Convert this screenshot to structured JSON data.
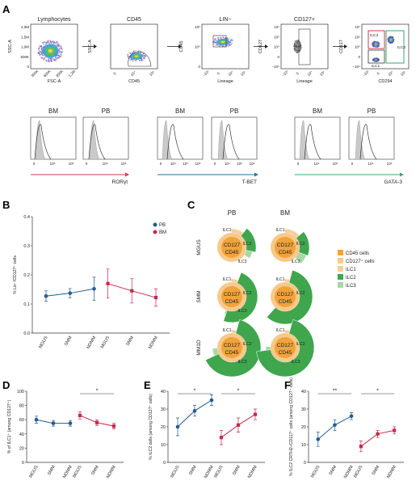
{
  "panels": {
    "A": "A",
    "B": "B",
    "C": "C",
    "D": "D",
    "E": "E",
    "F": "F"
  },
  "flow": {
    "plots": [
      {
        "title": "Lymphocytes",
        "ylabel": "SSC-A",
        "xlabel": "FSC-A",
        "yticks": [
          "2,0M",
          "1,5M",
          "1,0M",
          "500K",
          "0"
        ],
        "xticks": [
          "300K",
          "600K",
          "900K",
          "1,2M"
        ]
      },
      {
        "title": "CD45",
        "ylabel": "SSC-A",
        "xlabel": "CD45",
        "yticks": [],
        "xticks": [
          "0",
          "10⁴",
          "10⁶"
        ]
      },
      {
        "title": "LIN−",
        "ylabel": "CD45",
        "xlabel": "Lineage",
        "yticks": [
          "10⁶",
          "10⁴",
          "0"
        ],
        "xticks": [
          "−10⁴",
          "0",
          "10⁴",
          "10⁶"
        ]
      },
      {
        "title": "CD127+",
        "ylabel": "CD127",
        "xlabel": "Lineage",
        "yticks": [
          "10⁷",
          "10⁵",
          "10⁴",
          "0",
          "−10⁴"
        ],
        "xticks": [
          "−10⁴",
          "0",
          "10⁴",
          "10⁶"
        ]
      },
      {
        "title": "",
        "ylabel": "CD117",
        "xlabel": "CD294",
        "yticks": [
          "10⁷",
          "10⁵",
          "10⁴",
          "0",
          "−10⁴"
        ],
        "xticks": [
          "−10⁴",
          "0",
          "10⁴",
          "10⁶"
        ],
        "gates": [
          "ILC3",
          "ILC2",
          "ILC1"
        ]
      }
    ]
  },
  "histograms": {
    "items": [
      {
        "label": "BM",
        "xticks": [
          "0",
          "10⁵",
          "10⁶"
        ]
      },
      {
        "label": "PB",
        "xticks": [
          "0",
          "10⁵",
          "10⁶"
        ]
      },
      {
        "label": "BM",
        "xticks": [
          "0",
          "10⁴",
          "10⁵",
          "10⁶"
        ]
      },
      {
        "label": "PB",
        "xticks": [
          "0",
          "10⁴",
          "10⁵",
          "10⁶"
        ]
      },
      {
        "label": "BM",
        "xticks": [
          "0",
          "10⁴",
          "10⁵"
        ]
      },
      {
        "label": "PB",
        "xticks": [
          "0",
          "10⁴",
          "10⁵"
        ]
      }
    ],
    "markers": [
      {
        "label": "RORγt",
        "color": "#d0384d"
      },
      {
        "label": "T-BET",
        "color": "#2d6e9e"
      },
      {
        "label": "GATA-3",
        "color": "#3aa66a"
      }
    ]
  },
  "donuts": {
    "col_labels": [
      "PB",
      "BM"
    ],
    "row_labels": [
      "MGUS",
      "SMM",
      "MM1D"
    ],
    "inner_labels": {
      "cd127": "CD127",
      "cd45": "CD45"
    },
    "seg_labels": [
      "ILC1",
      "ILC2",
      "ILC3"
    ],
    "legend": [
      {
        "label": "CD45 cells",
        "color": "#f1a33a"
      },
      {
        "label": "CD127⁺ cells",
        "color": "#f8c98a"
      },
      {
        "label": "ILC1",
        "color": "#f5cf9a"
      },
      {
        "label": "ILC2",
        "color": "#3fa64d"
      },
      {
        "label": "ILC3",
        "color": "#a7d8a5"
      }
    ]
  },
  "colors": {
    "pb": "#245b8f",
    "bm": "#c8294b"
  },
  "chart_data": [
    {
      "panel": "B",
      "type": "line",
      "ylabel": "% Lin⁻/CD127⁺ cells",
      "categories": [
        "MGUS",
        "SMM",
        "NDMM"
      ],
      "ylim": [
        0,
        0.4
      ],
      "yticks": [
        "0.0",
        "0.1",
        "0.2",
        "0.3",
        "0.4"
      ],
      "legend": [
        {
          "label": "PB",
          "color": "#245b8f"
        },
        {
          "label": "BM",
          "color": "#c8294b"
        }
      ],
      "series": [
        {
          "name": "PB",
          "values": [
            0.127,
            0.137,
            0.152
          ],
          "err": [
            0.018,
            0.016,
            0.04
          ]
        },
        {
          "name": "BM",
          "values": [
            0.17,
            0.145,
            0.122
          ],
          "err": [
            0.05,
            0.042,
            0.03
          ]
        }
      ]
    },
    {
      "panel": "D",
      "type": "line",
      "ylabel": "% of ILC1⁺ (among CD127⁺)",
      "categories": [
        "MGUS",
        "SMM",
        "NDMM"
      ],
      "ylim": [
        0,
        100
      ],
      "yticks": [
        "0",
        "20",
        "40",
        "60",
        "80",
        "100"
      ],
      "sig": [
        "*"
      ],
      "series": [
        {
          "name": "PB",
          "values": [
            60,
            55,
            55
          ],
          "err": [
            5,
            4,
            4
          ]
        },
        {
          "name": "BM",
          "values": [
            66,
            56,
            51
          ],
          "err": [
            5,
            4,
            4
          ]
        }
      ]
    },
    {
      "panel": "E",
      "type": "line",
      "ylabel": "% ILC2 cells (among CD127⁺ cells)",
      "categories": [
        "MGUS",
        "SMM",
        "NDMM"
      ],
      "ylim": [
        0,
        40
      ],
      "yticks": [
        "0",
        "10",
        "20",
        "30",
        "40"
      ],
      "sig": [
        "*",
        "*"
      ],
      "series": [
        {
          "name": "PB",
          "values": [
            20,
            29,
            35
          ],
          "err": [
            5,
            3,
            3
          ]
        },
        {
          "name": "BM",
          "values": [
            14,
            21,
            27
          ],
          "err": [
            4,
            4,
            3
          ]
        }
      ]
    },
    {
      "panel": "F",
      "type": "line",
      "ylabel": "% ILC2 CRTH2+CD117⁺ cells (among CD127⁺ cells)",
      "categories": [
        "MGUS",
        "SMM",
        "NDMM"
      ],
      "ylim": [
        0,
        40
      ],
      "yticks": [
        "0",
        "10",
        "20",
        "30",
        "40"
      ],
      "sig": [
        "**",
        "*"
      ],
      "series": [
        {
          "name": "PB",
          "values": [
            13,
            21,
            26
          ],
          "err": [
            4,
            3,
            2
          ]
        },
        {
          "name": "BM",
          "values": [
            9,
            16,
            18
          ],
          "err": [
            3,
            2,
            2
          ]
        }
      ]
    }
  ]
}
